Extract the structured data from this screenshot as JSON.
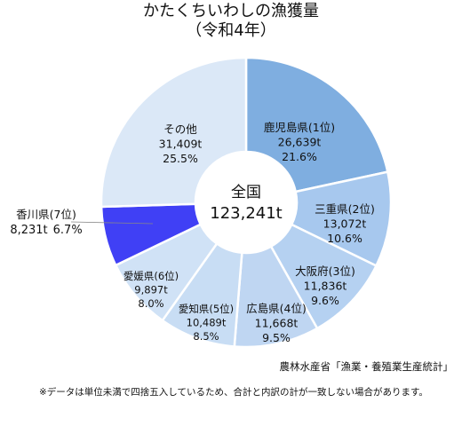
{
  "chart_data": {
    "type": "pie",
    "title": "かたくちいわしの漁獲量",
    "subtitle": "（令和4年）",
    "center_label": "全国",
    "center_value": "123,241t",
    "slices": [
      {
        "name": "鹿児島県(1位)",
        "value_label": "26,639t",
        "percent_label": "21.6%",
        "value": 26639,
        "color": "#7faee0"
      },
      {
        "name": "三重県(2位)",
        "value_label": "13,072t",
        "percent_label": "10.6%",
        "value": 13072,
        "color": "#a7c8ee"
      },
      {
        "name": "大阪府(3位)",
        "value_label": "11,836t",
        "percent_label": "9.6%",
        "value": 11836,
        "color": "#b5d1f1"
      },
      {
        "name": "広島県(4位)",
        "value_label": "11,668t",
        "percent_label": "9.5%",
        "value": 11668,
        "color": "#bfd6f2"
      },
      {
        "name": "愛知県(5位)",
        "value_label": "10,489t",
        "percent_label": "8.5%",
        "value": 10489,
        "color": "#c8ddf4"
      },
      {
        "name": "愛媛県(6位)",
        "value_label": "9,897t",
        "percent_label": "8.0%",
        "value": 9897,
        "color": "#d0e2f6"
      },
      {
        "name": "香川県(7位)",
        "value_label": "8,231t",
        "percent_label": "6.7%",
        "value": 8231,
        "color": "#4040f5"
      },
      {
        "name": "その他",
        "value_label": "31,409t",
        "percent_label": "25.5%",
        "value": 31409,
        "color": "#dbe8f7"
      }
    ]
  },
  "source": "農林水産省「漁業・養殖業生産統計」",
  "note": "※データは単位未満で四捨五入しているため、合計と内訳の計が一致しない場合があります。"
}
